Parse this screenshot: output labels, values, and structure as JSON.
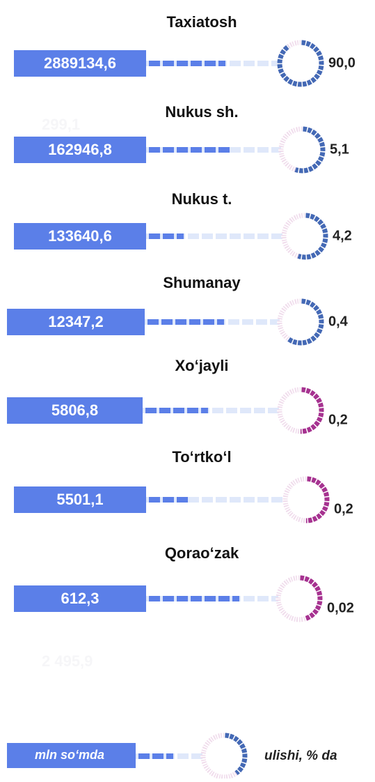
{
  "items": [
    {
      "name": "Taxiatosh",
      "amount": "2889134,6",
      "share": "90,0"
    },
    {
      "name": "Nukus sh.",
      "amount": "162946,8",
      "share": "5,1"
    },
    {
      "name": "Nukus t.",
      "amount": "133640,6",
      "share": "4,2"
    },
    {
      "name": "Shumanay",
      "amount": "12347,2",
      "share": "0,4"
    },
    {
      "name": "Xo‘jayli",
      "amount": "5806,8",
      "share": "0,2"
    },
    {
      "name": "To‘rtko‘l",
      "amount": "5501,1",
      "share": "0,2"
    },
    {
      "name": "Qorao‘zak",
      "amount": "612,3",
      "share": "0,02"
    }
  ],
  "ghost_texts": [
    "299,1",
    "2 495,9"
  ],
  "legend": {
    "amount_unit": "mln so‘mda",
    "share_unit": "ulishi, % da"
  }
}
